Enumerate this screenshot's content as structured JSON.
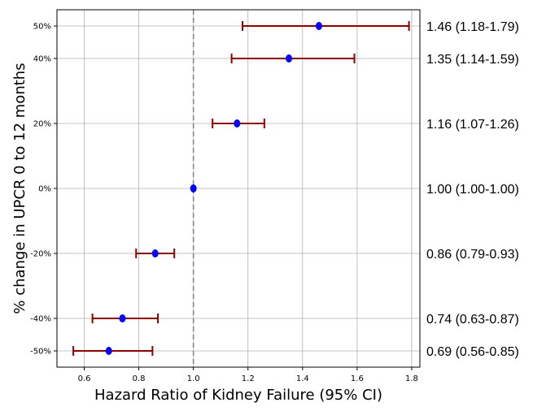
{
  "chart_data": {
    "type": "scatter",
    "subtype": "forest-plot",
    "title": "",
    "xlabel": "Hazard Ratio of Kidney Failure (95% CI)",
    "ylabel": "% change in UPCR 0 to 12 months",
    "xlim": [
      0.5,
      1.83
    ],
    "ylim": [
      -55,
      55
    ],
    "xticks": [
      0.6,
      0.8,
      1.0,
      1.2,
      1.4,
      1.6,
      1.8
    ],
    "xtick_labels": [
      "0.6",
      "0.8",
      "1.0",
      "1.2",
      "1.4",
      "1.6",
      "1.8"
    ],
    "grid": true,
    "reference_line": {
      "x": 1.0,
      "style": "dashed"
    },
    "colors": {
      "point": "#0000ff",
      "ci": "#8b0000",
      "reference": "#808080",
      "grid": "#b0b0b0"
    },
    "rows": [
      {
        "y": 50,
        "label": "50%",
        "hr": 1.46,
        "lo": 1.18,
        "hi": 1.79,
        "annotation": "1.46 (1.18-1.79)"
      },
      {
        "y": 40,
        "label": "40%",
        "hr": 1.35,
        "lo": 1.14,
        "hi": 1.59,
        "annotation": "1.35 (1.14-1.59)"
      },
      {
        "y": 20,
        "label": "20%",
        "hr": 1.16,
        "lo": 1.07,
        "hi": 1.26,
        "annotation": "1.16 (1.07-1.26)"
      },
      {
        "y": 0,
        "label": "0%",
        "hr": 1.0,
        "lo": 1.0,
        "hi": 1.0,
        "annotation": "1.00 (1.00-1.00)"
      },
      {
        "y": -20,
        "label": "-20%",
        "hr": 0.86,
        "lo": 0.79,
        "hi": 0.93,
        "annotation": "0.86 (0.79-0.93)"
      },
      {
        "y": -40,
        "label": "-40%",
        "hr": 0.74,
        "lo": 0.63,
        "hi": 0.87,
        "annotation": "0.74 (0.63-0.87)"
      },
      {
        "y": -50,
        "label": "-50%",
        "hr": 0.69,
        "lo": 0.56,
        "hi": 0.85,
        "annotation": "0.69 (0.56-0.85)"
      }
    ]
  }
}
